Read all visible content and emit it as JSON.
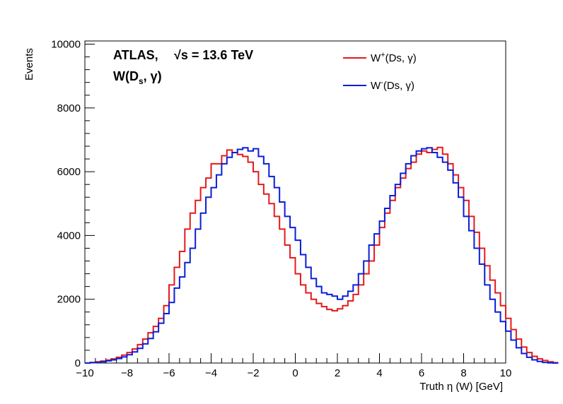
{
  "chart_data": {
    "type": "line",
    "xlabel": "Truth η (W)  [GeV]",
    "ylabel": "Events",
    "xlim": [
      -10,
      10
    ],
    "ylim": [
      0,
      10100
    ],
    "x_ticks": [
      "−10",
      "−8",
      "−6",
      "−4",
      "−2",
      "0",
      "2",
      "4",
      "6",
      "8",
      "10"
    ],
    "y_ticks": [
      "0",
      "2000",
      "4000",
      "6000",
      "8000",
      "10000"
    ],
    "annotations": {
      "experiment": "ATLAS,",
      "energy": "√s = 13.6 TeV",
      "process": "W(D",
      "process_sub": "s",
      "process_rest": ", γ)"
    },
    "legend_position": "top-right",
    "bin_edges_start": -10,
    "bin_width": 0.25,
    "series": [
      {
        "name": "W⁺(Ds, γ)",
        "legend_base": "W",
        "legend_sup": "+",
        "legend_rest": "(Ds, γ)",
        "color": "#e41a1c",
        "values": [
          0,
          20,
          40,
          60,
          90,
          130,
          180,
          250,
          330,
          440,
          580,
          750,
          950,
          1150,
          1400,
          1800,
          2450,
          3000,
          3500,
          4200,
          4700,
          5100,
          5500,
          5800,
          6250,
          6250,
          6500,
          6680,
          6600,
          6540,
          6480,
          6300,
          6000,
          5600,
          5300,
          5000,
          4600,
          4200,
          3700,
          3300,
          2800,
          2450,
          2200,
          2000,
          1870,
          1770,
          1680,
          1640,
          1700,
          1800,
          1950,
          2150,
          2450,
          2800,
          3200,
          3700,
          4250,
          4700,
          5100,
          5500,
          5800,
          6100,
          6300,
          6550,
          6650,
          6600,
          6700,
          6760,
          6550,
          6250,
          5900,
          5500,
          5100,
          4600,
          4100,
          3600,
          3050,
          2600,
          2200,
          1800,
          1400,
          1050,
          750,
          500,
          330,
          210,
          130,
          80,
          40,
          10
        ]
      },
      {
        "name": "W⁻(Ds, γ)",
        "legend_base": "W",
        "legend_sup": "-",
        "legend_rest": "(Ds, γ)",
        "color": "#0a1ed6",
        "values": [
          0,
          10,
          20,
          40,
          70,
          100,
          140,
          190,
          260,
          350,
          460,
          600,
          770,
          980,
          1250,
          1550,
          1900,
          2350,
          2700,
          3150,
          3600,
          4200,
          4700,
          5200,
          5500,
          5900,
          6250,
          6450,
          6600,
          6700,
          6750,
          6650,
          6720,
          6480,
          6250,
          5850,
          5500,
          5050,
          4600,
          4250,
          3850,
          3400,
          3000,
          2650,
          2400,
          2200,
          2150,
          2100,
          2000,
          2100,
          2250,
          2450,
          2800,
          3200,
          3700,
          4050,
          4450,
          4850,
          5250,
          5600,
          5950,
          6250,
          6500,
          6650,
          6720,
          6750,
          6600,
          6450,
          6300,
          6050,
          5650,
          5200,
          4600,
          4150,
          3600,
          3100,
          2450,
          2000,
          1600,
          1300,
          1000,
          720,
          480,
          300,
          180,
          100,
          50,
          20,
          5,
          0
        ]
      }
    ]
  }
}
